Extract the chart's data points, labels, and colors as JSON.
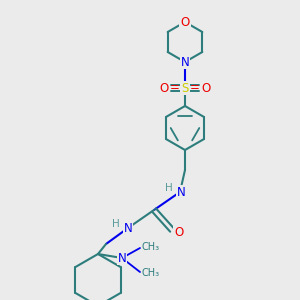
{
  "bg_color": "#ebebeb",
  "atom_colors": {
    "C": "#2d7d7d",
    "N": "#0000ee",
    "O": "#ee0000",
    "S": "#cccc00",
    "H": "#5a9a9a"
  },
  "figsize": [
    3.0,
    3.0
  ],
  "dpi": 100
}
